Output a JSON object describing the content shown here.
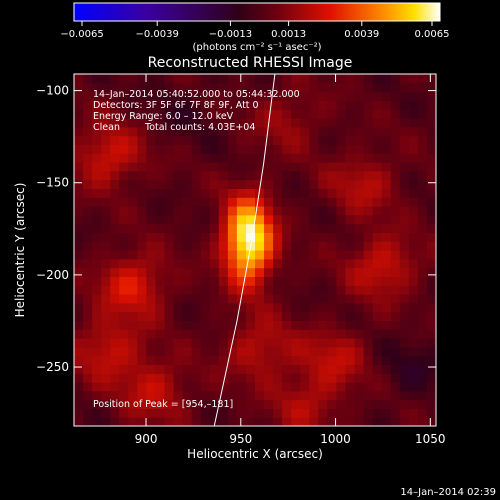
{
  "chart_data": {
    "type": "heatmap",
    "title": "Reconstructed RHESSI Image",
    "xlabel": "Heliocentric X (arcsec)",
    "ylabel": "Heliocentric Y (arcsec)",
    "xlim": [
      862,
      1053
    ],
    "ylim": [
      -282,
      -91
    ],
    "xticks": [
      900,
      950,
      1000,
      1050
    ],
    "yticks": [
      -100,
      -150,
      -200,
      -250
    ],
    "colorbar": {
      "label": "(photons cm⁻² s⁻¹ asec⁻²)",
      "range": [
        -0.0065,
        0.0065
      ],
      "ticks": [
        "−0.0065",
        "−0.0039",
        "−0.0013",
        "0.0013",
        "0.0039",
        "0.0065"
      ],
      "colormap": "rainbow-to-white"
    },
    "info": {
      "time": "14–Jan–2014 05:40:52.000 to 05:44:32.000",
      "detectors": "Detectors: 3F 5F 6F 7F 8F 9F, Att 0",
      "energy": "Energy Range: 6.0 – 12.0 keV",
      "clean": "Clean",
      "counts": "Total counts: 4.03E+04"
    },
    "peak_label": "Position of Peak = [954,–181]",
    "peak": [
      954,
      -181
    ],
    "peak_value": 0.0065,
    "sources": [
      {
        "x": 954,
        "y": -181,
        "amplitude": 0.0065
      },
      {
        "x": 880,
        "y": -135,
        "amplitude": 0.0022
      },
      {
        "x": 893,
        "y": -205,
        "amplitude": 0.0024
      },
      {
        "x": 1025,
        "y": -195,
        "amplitude": 0.0021
      },
      {
        "x": 1015,
        "y": -150,
        "amplitude": 0.0016
      },
      {
        "x": 880,
        "y": -240,
        "amplitude": 0.002
      },
      {
        "x": 960,
        "y": -240,
        "amplitude": 0.0018
      },
      {
        "x": 1000,
        "y": -245,
        "amplitude": 0.0016
      },
      {
        "x": 905,
        "y": -262,
        "amplitude": 0.0018
      },
      {
        "x": 985,
        "y": -270,
        "amplitude": 0.0015
      },
      {
        "x": 975,
        "y": -115,
        "amplitude": 0.0012
      },
      {
        "x": 1040,
        "y": -250,
        "amplitude": -0.0008
      },
      {
        "x": 920,
        "y": -110,
        "amplitude": -0.0005
      }
    ],
    "limb_curve": [
      [
        968,
        -91
      ],
      [
        962,
        -140
      ],
      [
        956,
        -180
      ],
      [
        948,
        -225
      ],
      [
        936,
        -282
      ]
    ]
  },
  "footer_date": "14–Jan–2014 02:39"
}
